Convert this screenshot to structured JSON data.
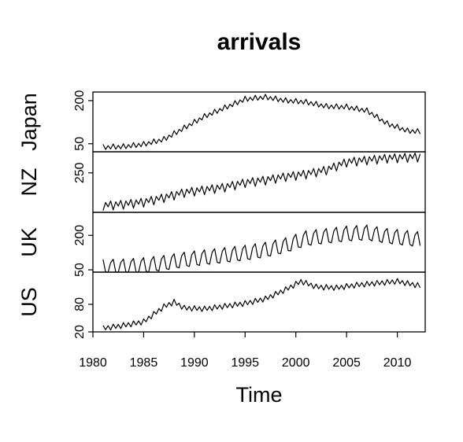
{
  "chart_data": {
    "type": "line",
    "title": "arrivals",
    "xlabel": "Time",
    "xlim": [
      1980,
      2012.75
    ],
    "x_ticks": [
      {
        "value": 1980,
        "label": "1980"
      },
      {
        "value": 1985,
        "label": "1985"
      },
      {
        "value": 1990,
        "label": "1990"
      },
      {
        "value": 1995,
        "label": "1995"
      },
      {
        "value": 2000,
        "label": "2000"
      },
      {
        "value": 2005,
        "label": "2005"
      },
      {
        "value": 2010,
        "label": "2010"
      }
    ],
    "grid": false,
    "legend": "none",
    "frequency": "quarterly",
    "start": 1981.0,
    "series": [
      {
        "name": "Japan",
        "ylim": [
          22,
          230
        ],
        "y_ticks": [
          {
            "value": 50,
            "label": "50"
          },
          {
            "value": 200,
            "label": "200"
          }
        ],
        "anchors": [
          [
            1981,
            38
          ],
          [
            1983,
            40
          ],
          [
            1985,
            48
          ],
          [
            1987,
            65
          ],
          [
            1989,
            105
          ],
          [
            1991,
            145
          ],
          [
            1993,
            175
          ],
          [
            1995,
            205
          ],
          [
            1997,
            212
          ],
          [
            1999,
            200
          ],
          [
            2001,
            195
          ],
          [
            2003,
            180
          ],
          [
            2005,
            178
          ],
          [
            2007,
            165
          ],
          [
            2009,
            120
          ],
          [
            2011,
            95
          ],
          [
            2012.25,
            92
          ]
        ],
        "seasonal": [
          10,
          -8,
          5,
          -7
        ]
      },
      {
        "name": "NZ",
        "ylim": [
          100,
          330
        ],
        "y_ticks": [
          {
            "value": 250,
            "label": "250"
          }
        ],
        "anchors": [
          [
            1981,
            125
          ],
          [
            1983,
            130
          ],
          [
            1985,
            138
          ],
          [
            1987,
            155
          ],
          [
            1989,
            175
          ],
          [
            1991,
            185
          ],
          [
            1993,
            195
          ],
          [
            1995,
            212
          ],
          [
            1997,
            222
          ],
          [
            1999,
            235
          ],
          [
            2001,
            245
          ],
          [
            2003,
            260
          ],
          [
            2005,
            290
          ],
          [
            2007,
            298
          ],
          [
            2009,
            305
          ],
          [
            2012.25,
            310
          ]
        ],
        "seasonal": [
          -18,
          12,
          -5,
          16
        ]
      },
      {
        "name": "UK",
        "ylim": [
          40,
          300
        ],
        "y_ticks": [
          {
            "value": 50,
            "label": "50"
          },
          {
            "value": 200,
            "label": "200"
          }
        ],
        "anchors": [
          [
            1981,
            60
          ],
          [
            1983,
            62
          ],
          [
            1985,
            68
          ],
          [
            1987,
            78
          ],
          [
            1989,
            92
          ],
          [
            1991,
            102
          ],
          [
            1993,
            112
          ],
          [
            1995,
            122
          ],
          [
            1997,
            135
          ],
          [
            1999,
            155
          ],
          [
            2001,
            185
          ],
          [
            2003,
            195
          ],
          [
            2005,
            205
          ],
          [
            2007,
            210
          ],
          [
            2009,
            195
          ],
          [
            2012.25,
            180
          ]
        ],
        "seasonal": [
          35,
          -25,
          -30,
          20
        ]
      },
      {
        "name": "US",
        "ylim": [
          20,
          150
        ],
        "y_ticks": [
          {
            "value": 20,
            "label": "20"
          },
          {
            "value": 80,
            "label": "80"
          }
        ],
        "anchors": [
          [
            1981,
            28
          ],
          [
            1983,
            34
          ],
          [
            1985,
            42
          ],
          [
            1987,
            75
          ],
          [
            1988,
            85
          ],
          [
            1989,
            72
          ],
          [
            1991,
            70
          ],
          [
            1993,
            76
          ],
          [
            1995,
            82
          ],
          [
            1997,
            92
          ],
          [
            1999,
            112
          ],
          [
            2000.5,
            130
          ],
          [
            2002,
            118
          ],
          [
            2004,
            116
          ],
          [
            2006,
            122
          ],
          [
            2008,
            126
          ],
          [
            2010,
            130
          ],
          [
            2012.25,
            120
          ]
        ],
        "seasonal": [
          6,
          -4,
          4,
          -6
        ]
      }
    ]
  }
}
